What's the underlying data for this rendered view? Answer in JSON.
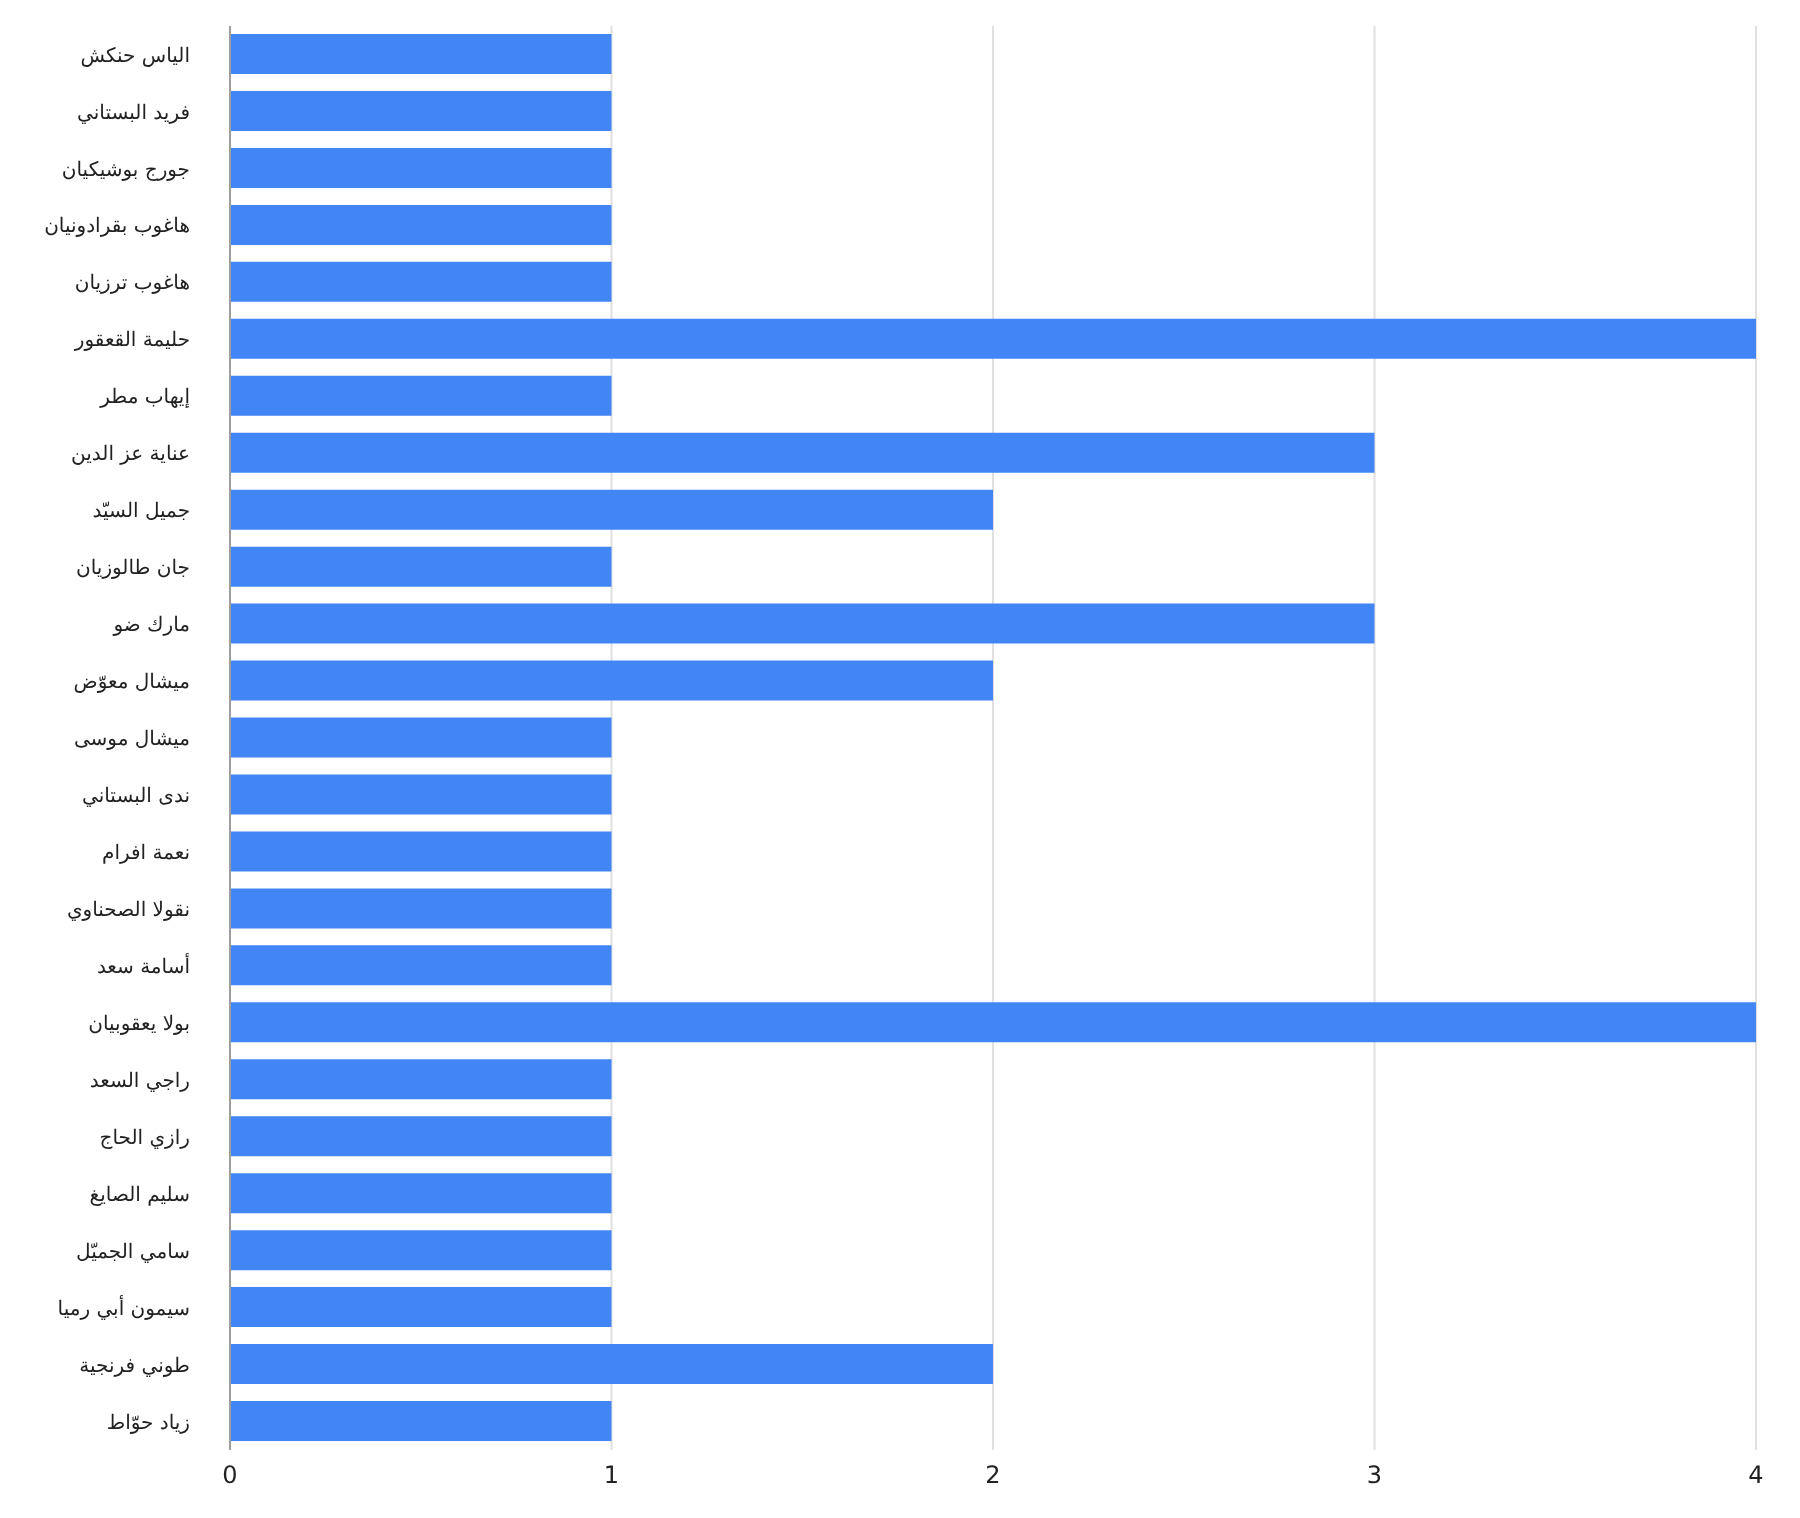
{
  "chart_data": {
    "type": "bar",
    "orientation": "horizontal",
    "categories": [
      "الياس حنكش",
      "فريد البستاني",
      "جورج بوشيكيان",
      "هاغوب بقرادونيان",
      "هاغوب ترزيان",
      "حليمة القعقور",
      "إيهاب مطر",
      "عناية عز الدين",
      "جميل السيّد",
      "جان طالوزيان",
      "مارك ضو",
      "ميشال معوّض",
      "ميشال موسى",
      "ندى البستاني",
      "نعمة افرام",
      "نقولا الصحناوي",
      "أسامة سعد",
      "بولا يعقوبيان",
      "راجي السعد",
      "رازي الحاج",
      "سليم الصايغ",
      "سامي الجميّل",
      "سيمون أبي رميا",
      "طوني فرنجية",
      "زياد حوّاط"
    ],
    "values": [
      1,
      1,
      1,
      1,
      1,
      4,
      1,
      3,
      2,
      1,
      3,
      2,
      1,
      1,
      1,
      1,
      1,
      4,
      1,
      1,
      1,
      1,
      1,
      2,
      1
    ],
    "color": "#4285f4",
    "xlim": [
      0,
      4
    ],
    "xticks": [
      0,
      1,
      2,
      3,
      4
    ],
    "grid": "x"
  }
}
